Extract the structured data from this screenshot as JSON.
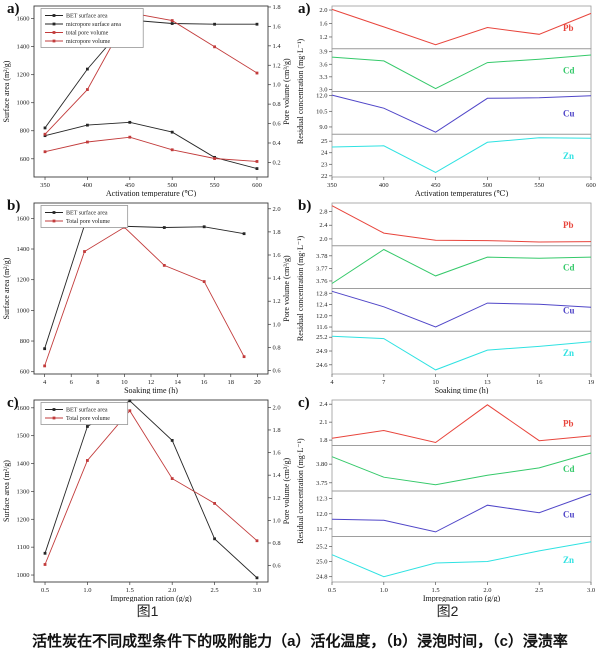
{
  "bottom_caption": "活性炭在不同成型条件下的吸附能力（a）活化温度，（b）浸泡时间，（c）浸渍率",
  "chart_data": {
    "figure1": {
      "caption": "图1",
      "style": "dual",
      "panels": [
        {
          "type": "line",
          "letter": "a)",
          "xlabel": "Activation temperature (℃)",
          "x_data": [
            350,
            400,
            450,
            500,
            550,
            600
          ],
          "x_ticks": [
            "350",
            "400",
            "450",
            "500",
            "550",
            "600"
          ],
          "x_range": [
            337,
            613
          ],
          "left": {
            "label": "Surface area (m²/g)",
            "ticks": [
              "600",
              "800",
              "1000",
              "1200",
              "1400",
              "1600"
            ],
            "range": [
              470,
              1690
            ]
          },
          "right": {
            "label": "Pore volume (cm³/g)",
            "ticks": [
              "0.2",
              "0.4",
              "0.6",
              "0.8",
              "1.0",
              "1.2",
              "1.4",
              "1.6",
              "1.8"
            ],
            "range": [
              0.05,
              1.81
            ]
          },
          "series": [
            {
              "name": "BET surface area",
              "color": "#262626",
              "axis": "left",
              "y": [
                820,
                1240,
                1590,
                1565,
                1560,
                1560
              ]
            },
            {
              "name": "micropore surface area",
              "color": "#262626",
              "axis": "left",
              "y": [
                765,
                840,
                860,
                790,
                610,
                530
              ]
            },
            {
              "name": "total pore volume",
              "color": "#c23b3b",
              "axis": "right",
              "y": [
                0.49,
                0.95,
                1.74,
                1.66,
                1.39,
                1.12
              ]
            },
            {
              "name": "micropore volume",
              "color": "#c23b3b",
              "axis": "right",
              "y": [
                0.31,
                0.41,
                0.46,
                0.33,
                0.24,
                0.21
              ]
            }
          ]
        },
        {
          "type": "line",
          "letter": "b)",
          "xlabel": "Soaking time (h)",
          "x_data": [
            4,
            7,
            10,
            13,
            16,
            19
          ],
          "x_ticks": [
            "4",
            "6",
            "8",
            "10",
            "12",
            "14",
            "16",
            "18",
            "20"
          ],
          "x_range": [
            3.2,
            20.8
          ],
          "left": {
            "label": "Surface area (m²/g)",
            "ticks": [
              "600",
              "800",
              "1000",
              "1200",
              "1400",
              "1600"
            ],
            "range": [
              585,
              1700
            ]
          },
          "right": {
            "label": "Pore volume (cm³/g)",
            "ticks": [
              "0.6",
              "0.8",
              "1.0",
              "1.2",
              "1.4",
              "1.6",
              "1.8",
              "2.0"
            ],
            "range": [
              0.57,
              2.05
            ]
          },
          "series": [
            {
              "name": "BET surface area",
              "color": "#262626",
              "axis": "left",
              "y": [
                750,
                1555,
                1548,
                1540,
                1545,
                1500
              ]
            },
            {
              "name": "Total pore volume",
              "color": "#c23b3b",
              "axis": "right",
              "y": [
                0.64,
                1.63,
                1.84,
                1.51,
                1.37,
                0.72
              ]
            }
          ]
        },
        {
          "type": "line",
          "letter": "c)",
          "xlabel": "Impregnation ration (g/g)",
          "x_data": [
            0.5,
            1.0,
            1.5,
            2.0,
            2.5,
            3.0
          ],
          "x_ticks": [
            "0.5",
            "1.0",
            "1.5",
            "2.0",
            "2.5",
            "3.0"
          ],
          "x_range": [
            0.37,
            3.13
          ],
          "left": {
            "label": "Surface area (m²/g)",
            "ticks": [
              "1000",
              "1100",
              "1200",
              "1300",
              "1400",
              "1500",
              "1600"
            ],
            "range": [
              975,
              1628
            ]
          },
          "right": {
            "label": "Pore volume (cm³/g)",
            "ticks": [
              "0.6",
              "0.8",
              "1.0",
              "1.2",
              "1.4",
              "1.6",
              "1.8",
              "2.0"
            ],
            "range": [
              0.455,
              2.065
            ]
          },
          "series": [
            {
              "name": "BET surface area",
              "color": "#262626",
              "axis": "left",
              "y": [
                1078,
                1533,
                1625,
                1483,
                1130,
                990
              ]
            },
            {
              "name": "Total pore volume",
              "color": "#c23b3b",
              "axis": "right",
              "y": [
                0.61,
                1.53,
                1.97,
                1.37,
                1.15,
                0.82
              ]
            }
          ]
        }
      ]
    },
    "figure2": {
      "caption": "图2",
      "style": "stacked",
      "ylabel": "Residual concentration (mg·L⁻¹)",
      "panels": [
        {
          "type": "line",
          "letter": "a)",
          "xlabel": "Activation temperatures (℃)",
          "x_data": [
            350,
            400,
            450,
            500,
            550,
            600
          ],
          "x_ticks": [
            "350",
            "400",
            "450",
            "500",
            "550",
            "600"
          ],
          "x_range": [
            350,
            600
          ],
          "subpanels": [
            {
              "label": "Pb",
              "color": "#e8453c",
              "ticks": [
                "2.0",
                "1.6",
                "1.2"
              ],
              "range": [
                0.85,
                2.12
              ],
              "y": [
                2.02,
                1.5,
                0.97,
                1.48,
                1.28,
                1.9
              ]
            },
            {
              "label": "Cd",
              "color": "#35c96a",
              "ticks": [
                "3.9",
                "3.6",
                "3.3",
                "3.0"
              ],
              "range": [
                2.95,
                3.97
              ],
              "y": [
                3.77,
                3.68,
                3.02,
                3.64,
                3.72,
                3.82
              ]
            },
            {
              "label": "Cu",
              "color": "#5046c8",
              "ticks": [
                "12.0",
                "10.5",
                "9.0"
              ],
              "range": [
                8.3,
                12.4
              ],
              "y": [
                12.05,
                10.8,
                8.5,
                11.75,
                11.8,
                12.0
              ]
            },
            {
              "label": "Zn",
              "color": "#2fe2e2",
              "ticks": [
                "25",
                "24",
                "23",
                "22"
              ],
              "range": [
                21.9,
                25.6
              ],
              "y": [
                24.5,
                24.6,
                22.3,
                24.9,
                25.3,
                25.25
              ]
            }
          ]
        },
        {
          "type": "line",
          "letter": "b)",
          "xlabel": "Soaking time (h)",
          "x_data": [
            4,
            7,
            10,
            13,
            16,
            19
          ],
          "x_ticks": [
            "4",
            "7",
            "10",
            "13",
            "16",
            "19"
          ],
          "x_range": [
            4,
            19
          ],
          "subpanels": [
            {
              "label": "Pb",
              "color": "#e8453c",
              "ticks": [
                "2.8",
                "2.4",
                "2.0"
              ],
              "range": [
                1.8,
                3.05
              ],
              "y": [
                2.97,
                2.17,
                1.96,
                1.95,
                1.91,
                1.92
              ]
            },
            {
              "label": "Cd",
              "color": "#35c96a",
              "ticks": [
                "3.78",
                "3.77",
                "3.76"
              ],
              "range": [
                3.754,
                3.788
              ],
              "y": [
                3.758,
                3.785,
                3.764,
                3.779,
                3.778,
                3.779
              ]
            },
            {
              "label": "Cu",
              "color": "#5046c8",
              "ticks": [
                "12.8",
                "12.4",
                "12.0",
                "11.6"
              ],
              "range": [
                11.45,
                12.97
              ],
              "y": [
                12.87,
                12.32,
                11.6,
                12.45,
                12.41,
                12.3
              ]
            },
            {
              "label": "Zn",
              "color": "#2fe2e2",
              "ticks": [
                "25.2",
                "24.9",
                "24.6"
              ],
              "range": [
                24.4,
                25.33
              ],
              "y": [
                25.22,
                25.17,
                24.49,
                24.92,
                25.0,
                25.1
              ]
            }
          ]
        },
        {
          "type": "line",
          "letter": "c)",
          "xlabel": "Impregnation ratio (g/g)",
          "x_data": [
            0.5,
            1.0,
            1.5,
            2.0,
            2.5,
            3.0
          ],
          "x_ticks": [
            "0.5",
            "1.0",
            "1.5",
            "2.0",
            "2.5",
            "3.0"
          ],
          "x_range": [
            0.5,
            3.0
          ],
          "subpanels": [
            {
              "label": "Pb",
              "color": "#e8453c",
              "ticks": [
                "2.4",
                "2.1",
                "1.8"
              ],
              "range": [
                1.71,
                2.47
              ],
              "y": [
                1.83,
                1.96,
                1.76,
                2.39,
                1.79,
                1.87
              ]
            },
            {
              "label": "Cd",
              "color": "#35c96a",
              "ticks": [
                "3.80",
                "3.75"
              ],
              "range": [
                3.728,
                3.85
              ],
              "y": [
                3.82,
                3.765,
                3.745,
                3.77,
                3.79,
                3.83
              ]
            },
            {
              "label": "Cu",
              "color": "#5046c8",
              "ticks": [
                "12.3",
                "12.0",
                "11.7"
              ],
              "range": [
                11.55,
                12.45
              ],
              "y": [
                11.89,
                11.87,
                11.64,
                12.17,
                12.02,
                12.39
              ]
            },
            {
              "label": "Zn",
              "color": "#2fe2e2",
              "ticks": [
                "25.2",
                "25.0",
                "24.8"
              ],
              "range": [
                24.73,
                25.33
              ],
              "y": [
                25.09,
                24.8,
                24.98,
                25.0,
                25.14,
                25.26
              ]
            }
          ]
        }
      ]
    }
  }
}
